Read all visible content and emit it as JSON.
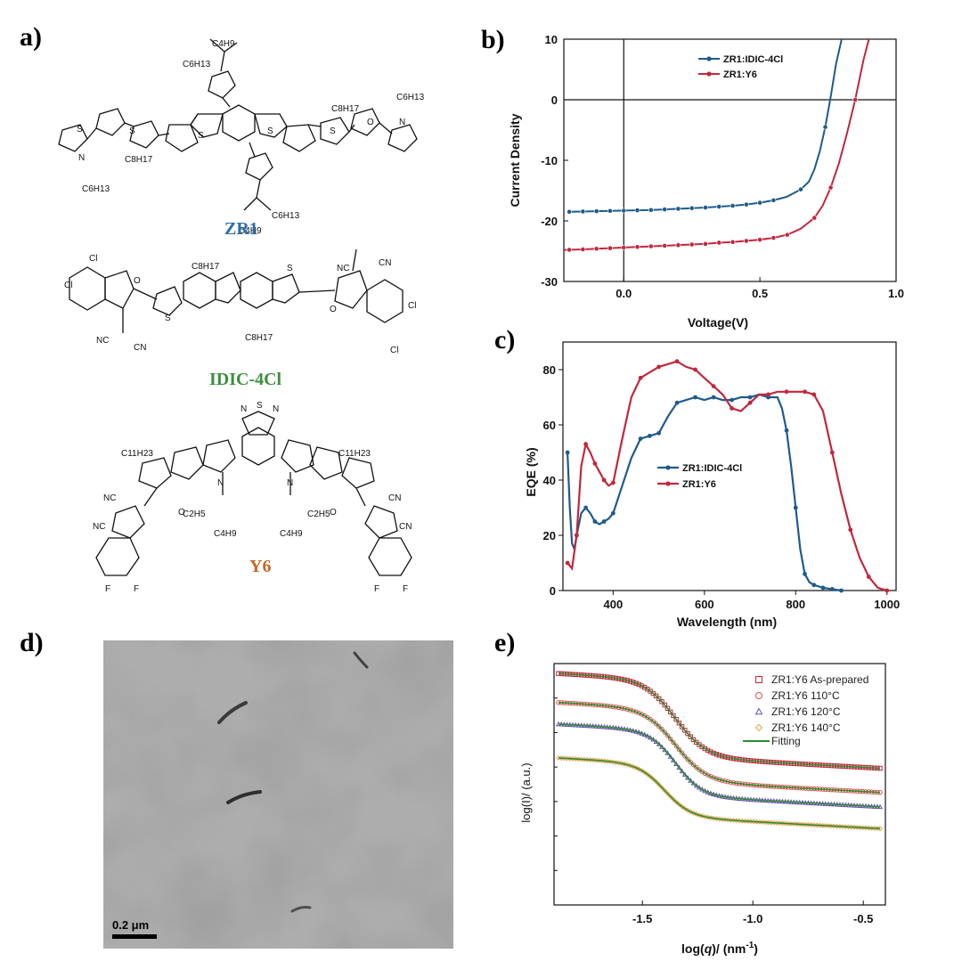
{
  "panels": {
    "a": "a)",
    "b": "b)",
    "c": "c)",
    "d": "d)",
    "e": "e)"
  },
  "molecules": {
    "zr1": {
      "label": "ZR1",
      "color": "#2b6fa8"
    },
    "idic": {
      "label": "IDIC-4Cl",
      "color": "#3f8f3f"
    },
    "y6": {
      "label": "Y6",
      "color": "#c56a2b"
    },
    "atoms": [
      "C4H9",
      "C6H13",
      "C8H17",
      "S",
      "O",
      "N",
      "NC",
      "CN",
      "Cl",
      "F",
      "C11H23",
      "C2H5"
    ]
  },
  "tem": {
    "scale_label": "0.2 μm"
  },
  "chart_data": [
    {
      "id": "b",
      "type": "line",
      "xlabel": "Voltage(V)",
      "ylabel": "Current Density",
      "xlim": [
        -0.22,
        1.0
      ],
      "ylim": [
        -30,
        10
      ],
      "xticks": [
        0.0,
        0.5,
        1.0
      ],
      "xtick_labels": [
        "0.0",
        "0.5",
        "1.0"
      ],
      "yticks": [
        -30,
        -20,
        -10,
        0,
        10
      ],
      "ytick_labels": [
        "-30",
        "-20",
        "-10",
        "0",
        "10"
      ],
      "legend_position": "top-center",
      "series": [
        {
          "name": "ZR1:IDIC-4Cl",
          "color": "#1f5a8c",
          "x": [
            -0.2,
            -0.15,
            -0.1,
            -0.05,
            0,
            0.05,
            0.1,
            0.15,
            0.2,
            0.25,
            0.3,
            0.35,
            0.4,
            0.45,
            0.5,
            0.55,
            0.6,
            0.65,
            0.68,
            0.7,
            0.72,
            0.74,
            0.76,
            0.78,
            0.8
          ],
          "y": [
            -18.5,
            -18.45,
            -18.4,
            -18.35,
            -18.3,
            -18.25,
            -18.2,
            -18.1,
            -18.0,
            -17.9,
            -17.8,
            -17.65,
            -17.5,
            -17.3,
            -17.0,
            -16.6,
            -16.0,
            -14.8,
            -13.5,
            -11.5,
            -8.5,
            -4.5,
            0.5,
            6.0,
            10.0
          ],
          "markers_x": [
            -0.2,
            -0.15,
            -0.1,
            -0.05,
            0,
            0.05,
            0.1,
            0.15,
            0.2,
            0.25,
            0.3,
            0.35,
            0.4,
            0.45,
            0.5,
            0.55,
            0.65,
            0.74
          ]
        },
        {
          "name": "ZR1:Y6",
          "color": "#c0283c",
          "x": [
            -0.22,
            -0.15,
            -0.1,
            -0.05,
            0,
            0.05,
            0.1,
            0.15,
            0.2,
            0.25,
            0.3,
            0.35,
            0.4,
            0.45,
            0.5,
            0.55,
            0.6,
            0.65,
            0.7,
            0.73,
            0.76,
            0.79,
            0.82,
            0.85,
            0.88,
            0.9
          ],
          "y": [
            -24.8,
            -24.7,
            -24.6,
            -24.5,
            -24.4,
            -24.3,
            -24.2,
            -24.1,
            -24.0,
            -23.9,
            -23.8,
            -23.6,
            -23.5,
            -23.3,
            -23.1,
            -22.8,
            -22.3,
            -21.3,
            -19.5,
            -17.5,
            -14.5,
            -10.5,
            -5.5,
            0.0,
            6.5,
            10.0
          ],
          "markers_x": [
            -0.2,
            -0.15,
            -0.1,
            -0.05,
            0,
            0.05,
            0.1,
            0.15,
            0.2,
            0.25,
            0.3,
            0.35,
            0.4,
            0.45,
            0.5,
            0.55,
            0.6,
            0.7,
            0.76,
            0.85
          ]
        }
      ]
    },
    {
      "id": "c",
      "type": "line",
      "xlabel": "Wavelength (nm)",
      "ylabel": "EQE (%)",
      "xlim": [
        290,
        1020
      ],
      "ylim": [
        0,
        90
      ],
      "xticks": [
        400,
        600,
        800,
        1000
      ],
      "xtick_labels": [
        "400",
        "600",
        "800",
        "1000"
      ],
      "yticks": [
        0,
        20,
        40,
        60,
        80
      ],
      "ytick_labels": [
        "0",
        "20",
        "40",
        "60",
        "80"
      ],
      "legend_position": "center",
      "series": [
        {
          "name": "ZR1:IDIC-4Cl",
          "color": "#1f5a8c",
          "x": [
            300,
            305,
            310,
            315,
            320,
            330,
            340,
            350,
            360,
            370,
            380,
            390,
            400,
            420,
            440,
            460,
            480,
            500,
            520,
            540,
            560,
            580,
            600,
            620,
            640,
            660,
            680,
            700,
            720,
            740,
            760,
            770,
            780,
            790,
            800,
            810,
            820,
            830,
            840,
            860,
            880,
            900
          ],
          "y": [
            50,
            30,
            17,
            15,
            20,
            28,
            30,
            28,
            25,
            24,
            25,
            26,
            28,
            38,
            48,
            55,
            56,
            57,
            63,
            68,
            69,
            70,
            69,
            70,
            69,
            69,
            70,
            70,
            71,
            70,
            70,
            66,
            58,
            45,
            30,
            15,
            6,
            3,
            2,
            1,
            0.5,
            0
          ],
          "markers_x": [
            300,
            320,
            340,
            360,
            380,
            400,
            460,
            480,
            500,
            540,
            580,
            620,
            660,
            700,
            740,
            780,
            800,
            820,
            840,
            860,
            880,
            900
          ]
        },
        {
          "name": "ZR1:Y6",
          "color": "#c0283c",
          "x": [
            300,
            310,
            320,
            330,
            340,
            350,
            360,
            370,
            380,
            390,
            400,
            420,
            440,
            460,
            480,
            500,
            520,
            540,
            560,
            580,
            600,
            620,
            640,
            660,
            680,
            700,
            720,
            740,
            760,
            780,
            800,
            820,
            840,
            860,
            880,
            900,
            920,
            940,
            960,
            980,
            1000
          ],
          "y": [
            10,
            8,
            20,
            45,
            53,
            50,
            46,
            43,
            40,
            38,
            39,
            55,
            70,
            77,
            79,
            81,
            82,
            83,
            81,
            80,
            77,
            74,
            71,
            66,
            65,
            68,
            71,
            71,
            72,
            72,
            72,
            72,
            71,
            65,
            50,
            35,
            22,
            12,
            5,
            1,
            0
          ],
          "markers_x": [
            300,
            320,
            340,
            360,
            380,
            400,
            460,
            500,
            540,
            580,
            620,
            660,
            700,
            740,
            780,
            820,
            840,
            880,
            920,
            960,
            1000
          ]
        }
      ]
    },
    {
      "id": "e",
      "type": "scatter",
      "xlabel": "log(q)/ (nm-1)",
      "xlabel_parts": {
        "pre": "log(",
        "italic": "q",
        "post": ")/ (nm",
        "sup": "-1",
        "end": ")"
      },
      "ylabel": "log(I)/ (a.u.)",
      "xlim": [
        -1.9,
        -0.4
      ],
      "xticks": [
        -1.5,
        -1.0,
        -0.5
      ],
      "xtick_labels": [
        "-1.5",
        "-1.0",
        "-0.5"
      ],
      "legend_position": "top-right",
      "series": [
        {
          "name": "ZR1:Y6 As-prepared",
          "marker": "square",
          "color": "#c0283c",
          "fit": [
            0.8,
            -0.05,
            1.35,
            0.32,
            0.07
          ]
        },
        {
          "name": "ZR1:Y6 110°C",
          "marker": "circle",
          "color": "#d9534f",
          "fit": [
            0.68,
            -0.05,
            1.35,
            0.3,
            0.07
          ]
        },
        {
          "name": "ZR1:Y6 120°C",
          "marker": "triangle",
          "color": "#6a4fb3",
          "fit": [
            0.59,
            -0.05,
            1.35,
            0.27,
            0.06
          ]
        },
        {
          "name": "ZR1:Y6 140°C",
          "marker": "diamond",
          "color": "#e8a04a",
          "fit": [
            0.45,
            -0.05,
            1.4,
            0.22,
            0.06
          ]
        }
      ],
      "fit_label": "Fitting",
      "fit_color": "#2e8b2e"
    }
  ]
}
